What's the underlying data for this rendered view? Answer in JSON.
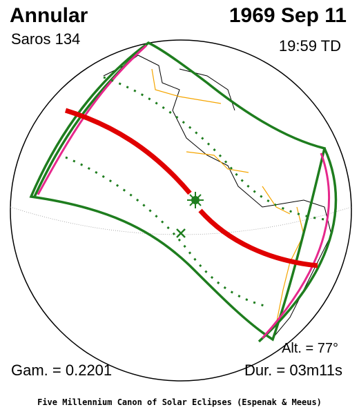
{
  "header": {
    "title": "Annular",
    "saros": "Saros 134",
    "date": "1969 Sep 11",
    "time": "19:59 TD"
  },
  "footer_stats": {
    "altitude": "Alt. = 77°",
    "gamma": "Gam. = 0.2201",
    "duration": "Dur. = 03m11s"
  },
  "credit": "Five Millennium Canon of Solar Eclipses (Espenak & Meeus)"
}
